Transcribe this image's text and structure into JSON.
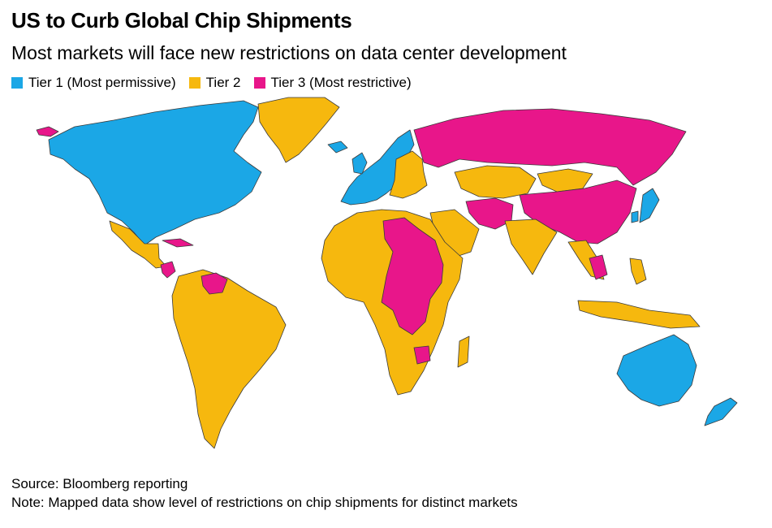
{
  "header": {
    "title": "US to Curb Global Chip Shipments",
    "subtitle": "Most markets will face new restrictions on data center development"
  },
  "legend": {
    "items": [
      {
        "label": "Tier 1 (Most permissive)",
        "color": "#1BA7E6"
      },
      {
        "label": "Tier 2",
        "color": "#F6B80E"
      },
      {
        "label": "Tier 3 (Most restrictive)",
        "color": "#E8168A"
      }
    ]
  },
  "colors": {
    "tier1": "#1BA7E6",
    "tier2": "#F6B80E",
    "tier3": "#E8168A",
    "border": "#3a3a3a"
  },
  "footer": {
    "source": "Source: Bloomberg reporting",
    "note": "Note: Mapped data show level of restrictions on chip shipments for distinct markets"
  }
}
